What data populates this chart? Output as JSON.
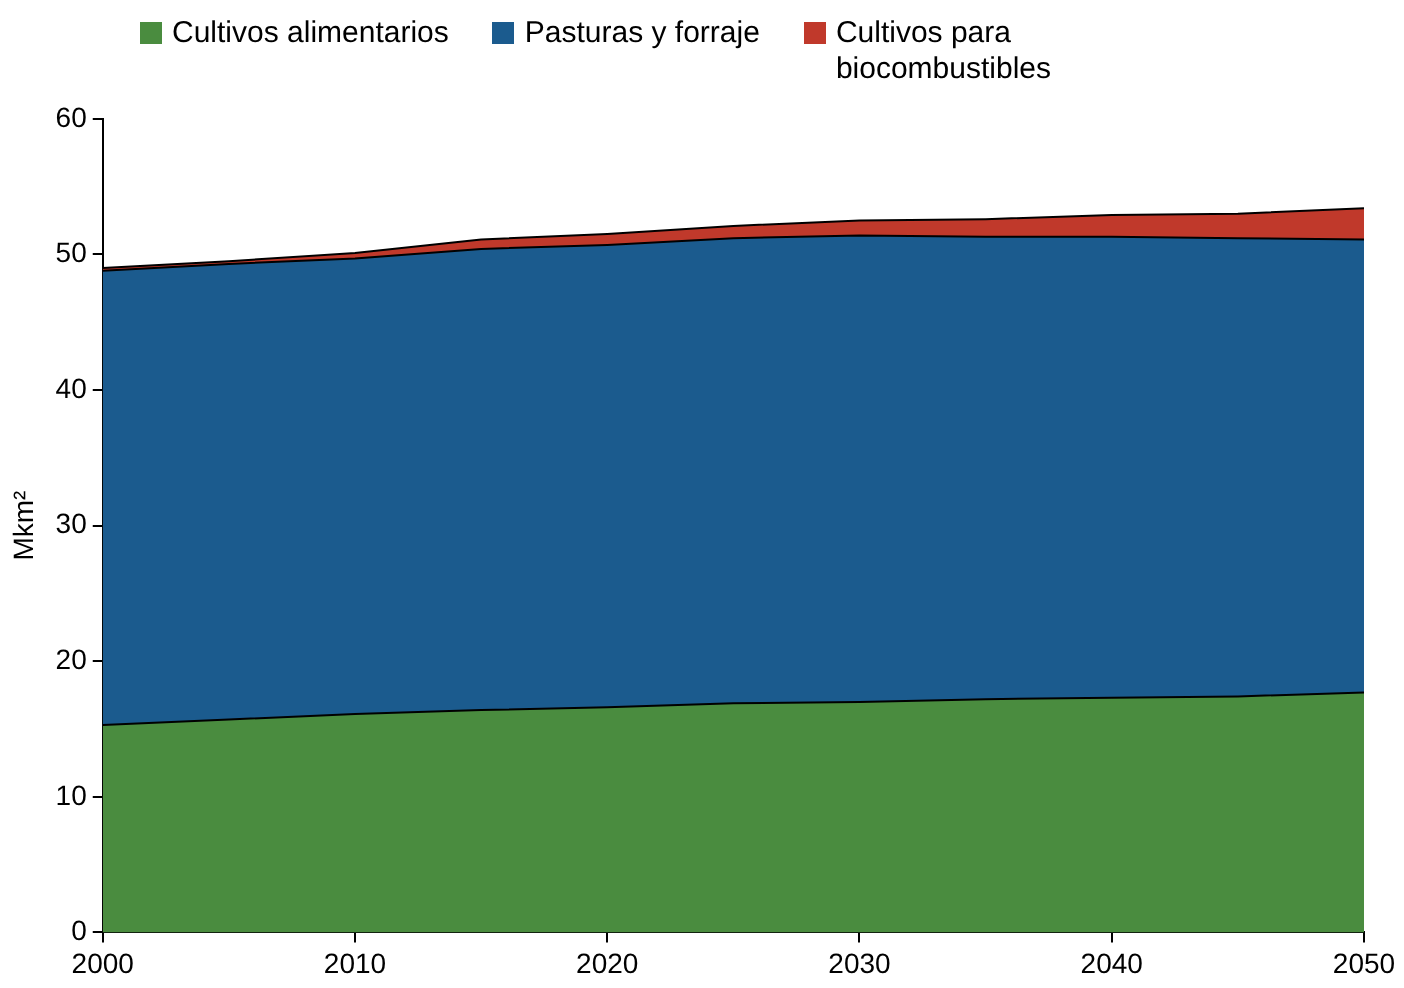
{
  "chart_data": {
    "type": "area",
    "stacked": true,
    "ylabel": "Mkm²",
    "x": [
      2000,
      2005,
      2010,
      2015,
      2020,
      2025,
      2030,
      2035,
      2040,
      2045,
      2050
    ],
    "series": [
      {
        "name": "Cultivos alimentarios",
        "color": "#4a8c3f",
        "values": [
          15.3,
          15.7,
          16.1,
          16.4,
          16.6,
          16.9,
          17.0,
          17.2,
          17.3,
          17.4,
          17.7
        ]
      },
      {
        "name": "Pasturas y forraje",
        "color": "#1b5b8e",
        "values": [
          33.5,
          33.6,
          33.6,
          34.0,
          34.1,
          34.3,
          34.4,
          34.1,
          34.0,
          33.8,
          33.4
        ]
      },
      {
        "name": "Cultivos para biocombustibles",
        "color": "#c0392b",
        "values": [
          0.2,
          0.2,
          0.4,
          0.7,
          0.8,
          0.9,
          1.1,
          1.3,
          1.6,
          1.8,
          2.3
        ]
      }
    ],
    "xlim": [
      2000,
      2050
    ],
    "xticks": [
      2000,
      2010,
      2020,
      2030,
      2040,
      2050
    ],
    "ylim": [
      0,
      60
    ],
    "yticks": [
      0,
      10,
      20,
      30,
      40,
      50,
      60
    ],
    "grid": false,
    "legend": "top"
  }
}
